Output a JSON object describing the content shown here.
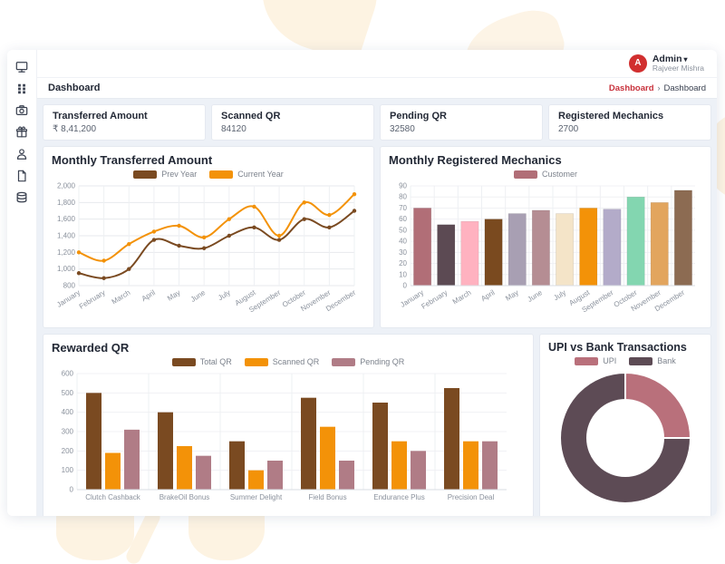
{
  "page": {
    "blob_color": "#fdf3e2"
  },
  "sidebar": {
    "items": [
      {
        "name": "desktop"
      },
      {
        "name": "dashboard-grid"
      },
      {
        "name": "camera"
      },
      {
        "name": "gift"
      },
      {
        "name": "user"
      },
      {
        "name": "file"
      },
      {
        "name": "layers"
      }
    ]
  },
  "header": {
    "avatar_letter": "A",
    "avatar_color": "#d12f2f",
    "admin_label": "Admin",
    "caret": "▾",
    "user_name": "Rajveer Mishra"
  },
  "breadcrumb": {
    "page_title": "Dashboard",
    "link": "Dashboard",
    "separator": "›",
    "current": "Dashboard",
    "link_color": "#c8323c"
  },
  "stats": [
    {
      "label": "Transferred Amount",
      "value": "₹ 8,41,200"
    },
    {
      "label": "Scanned QR",
      "value": "84120"
    },
    {
      "label": "Pending QR",
      "value": "32580"
    },
    {
      "label": "Registered Mechanics",
      "value": "2700"
    }
  ],
  "chart_data": [
    {
      "id": "monthly-transferred",
      "type": "line",
      "title": "Monthly Transferred Amount",
      "categories": [
        "January",
        "February",
        "March",
        "April",
        "May",
        "June",
        "July",
        "August",
        "September",
        "October",
        "November",
        "December"
      ],
      "series": [
        {
          "name": "Prev Year",
          "color": "#7a4a21",
          "values": [
            950,
            890,
            1000,
            1350,
            1280,
            1250,
            1400,
            1500,
            1350,
            1600,
            1500,
            1700
          ]
        },
        {
          "name": "Current Year",
          "color": "#f39208",
          "values": [
            1200,
            1100,
            1300,
            1450,
            1520,
            1380,
            1600,
            1750,
            1400,
            1800,
            1650,
            1900
          ]
        }
      ],
      "ylim": [
        800,
        2000
      ],
      "ytick_step": 200,
      "grid": true,
      "legend_position": "top"
    },
    {
      "id": "monthly-mechanics",
      "type": "bar",
      "title": "Monthly Registered Mechanics",
      "legend": [
        {
          "name": "Customer",
          "color": "#b16e77"
        }
      ],
      "categories": [
        "January",
        "February",
        "March",
        "April",
        "May",
        "June",
        "July",
        "August",
        "September",
        "October",
        "November",
        "December"
      ],
      "values": [
        70,
        55,
        58,
        60,
        65,
        68,
        65,
        70,
        69,
        80,
        75,
        86
      ],
      "bar_colors": [
        "#b16e77",
        "#5c4a53",
        "#ffb2c0",
        "#7a4a1f",
        "#a89fb3",
        "#b58d93",
        "#f4e4c8",
        "#f39208",
        "#b3abc9",
        "#83d6b0",
        "#e2a55e",
        "#8c6b52"
      ],
      "ylim": [
        0,
        90
      ],
      "ytick_step": 10,
      "grid": true,
      "legend_position": "top"
    },
    {
      "id": "rewarded-qr",
      "type": "bar",
      "title": "Rewarded QR",
      "categories": [
        "Clutch Cashback",
        "BrakeOil Bonus",
        "Summer Delight",
        "Field Bonus",
        "Endurance Plus",
        "Precision Deal"
      ],
      "series": [
        {
          "name": "Total QR",
          "color": "#7a4a21",
          "values": [
            500,
            400,
            250,
            475,
            450,
            525
          ]
        },
        {
          "name": "Scanned QR",
          "color": "#f39208",
          "values": [
            190,
            225,
            100,
            325,
            250,
            250
          ]
        },
        {
          "name": "Pending QR",
          "color": "#b07c86",
          "values": [
            310,
            175,
            150,
            150,
            200,
            250
          ]
        }
      ],
      "ylim": [
        0,
        600
      ],
      "ytick_step": 100,
      "grid": true,
      "legend_position": "top"
    },
    {
      "id": "upi-bank",
      "type": "pie",
      "title": "UPI vs Bank Transactions",
      "donut": true,
      "slices": [
        {
          "name": "UPI",
          "color": "#b9707b",
          "value": 25
        },
        {
          "name": "Bank",
          "color": "#5d4b55",
          "value": 75
        }
      ],
      "legend_position": "top"
    }
  ]
}
